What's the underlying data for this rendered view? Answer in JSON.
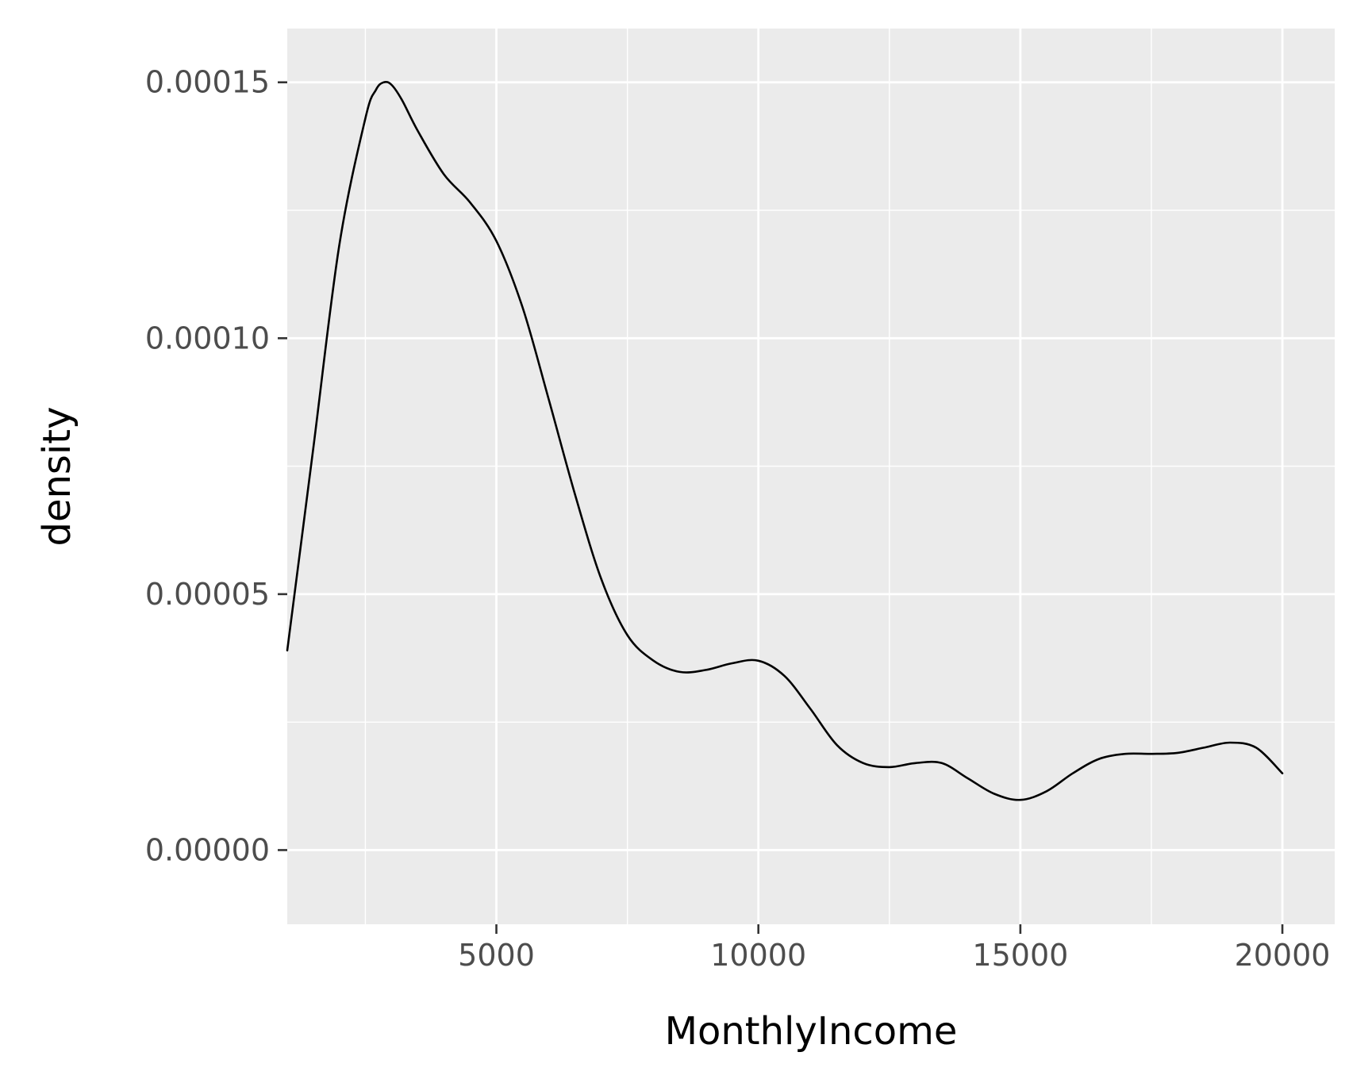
{
  "chart_data": {
    "type": "line",
    "title": "",
    "xlabel": "MonthlyIncome",
    "ylabel": "density",
    "xlim": [
      1009,
      20999
    ],
    "ylim": [
      -1.45e-05,
      0.0001605
    ],
    "x_ticks": [
      5000,
      10000,
      15000,
      20000
    ],
    "x_tick_labels": [
      "5000",
      "10000",
      "15000",
      "20000"
    ],
    "x_minor_ticks": [
      2500,
      7500,
      12500,
      17500
    ],
    "y_ticks": [
      0,
      5e-05,
      0.0001,
      0.00015
    ],
    "y_tick_labels": [
      "0.00000",
      "0.00005",
      "0.00010",
      "0.00015"
    ],
    "y_minor_ticks": [
      2.5e-05,
      7.5e-05,
      0.000125
    ],
    "grid": true,
    "colors": {
      "panel_background": "#ebebeb",
      "grid_major": "#ffffff",
      "grid_minor": "#ffffff",
      "line": "#000000",
      "tick_text": "#4d4d4d",
      "axis_title": "#000000"
    },
    "series": [
      {
        "x": [
          1009,
          1500,
          2000,
          2500,
          2700,
          2850,
          3000,
          3200,
          3500,
          4000,
          4500,
          5000,
          5500,
          6000,
          6500,
          7000,
          7500,
          8000,
          8500,
          9000,
          9500,
          10000,
          10500,
          11000,
          11500,
          12000,
          12500,
          13000,
          13500,
          14000,
          14500,
          15000,
          15500,
          16000,
          16500,
          17000,
          17500,
          18000,
          18500,
          19000,
          19500,
          19999
        ],
        "y": [
          3.9e-05,
          7.8e-05,
          0.000118,
          0.000143,
          0.0001485,
          0.00015,
          0.0001495,
          0.0001465,
          0.0001405,
          0.000132,
          0.0001265,
          0.000119,
          0.000106,
          8.8e-05,
          6.95e-05,
          5.3e-05,
          4.2e-05,
          3.7e-05,
          3.48e-05,
          3.52e-05,
          3.65e-05,
          3.7e-05,
          3.4e-05,
          2.75e-05,
          2.05e-05,
          1.7e-05,
          1.62e-05,
          1.7e-05,
          1.7e-05,
          1.4e-05,
          1.1e-05,
          9.8e-06,
          1.15e-05,
          1.5e-05,
          1.78e-05,
          1.88e-05,
          1.88e-05,
          1.9e-05,
          2e-05,
          2.1e-05,
          2e-05,
          1.5e-05
        ]
      }
    ]
  }
}
